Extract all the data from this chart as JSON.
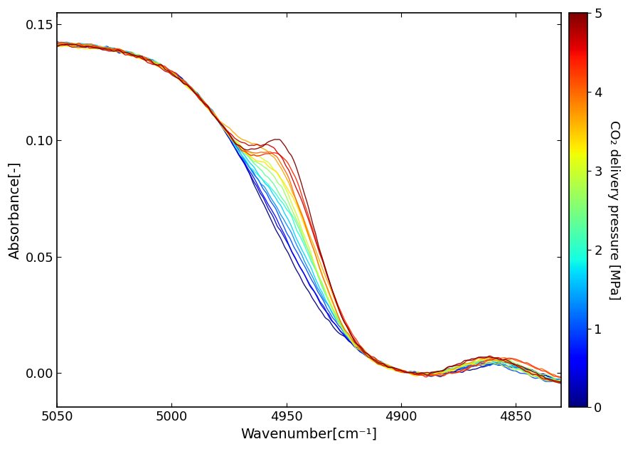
{
  "xlabel": "Wavenumber[cm⁻¹]",
  "ylabel": "Absorbance[-]",
  "xlim": [
    5050,
    4830
  ],
  "ylim": [
    -0.015,
    0.155
  ],
  "yticks": [
    0,
    0.05,
    0.1,
    0.15
  ],
  "xticks": [
    5050,
    5000,
    4950,
    4900,
    4850
  ],
  "colorbar_label": "CO₂ delivery pressure [MPa]",
  "colorbar_min": 0,
  "colorbar_max": 5,
  "colorbar_ticks": [
    0,
    1,
    2,
    3,
    4,
    5
  ],
  "n_curves": 16,
  "background_color": "#ffffff",
  "xlabel_fontsize": 14,
  "ylabel_fontsize": 14,
  "tick_fontsize": 13,
  "colorbar_fontsize": 13
}
